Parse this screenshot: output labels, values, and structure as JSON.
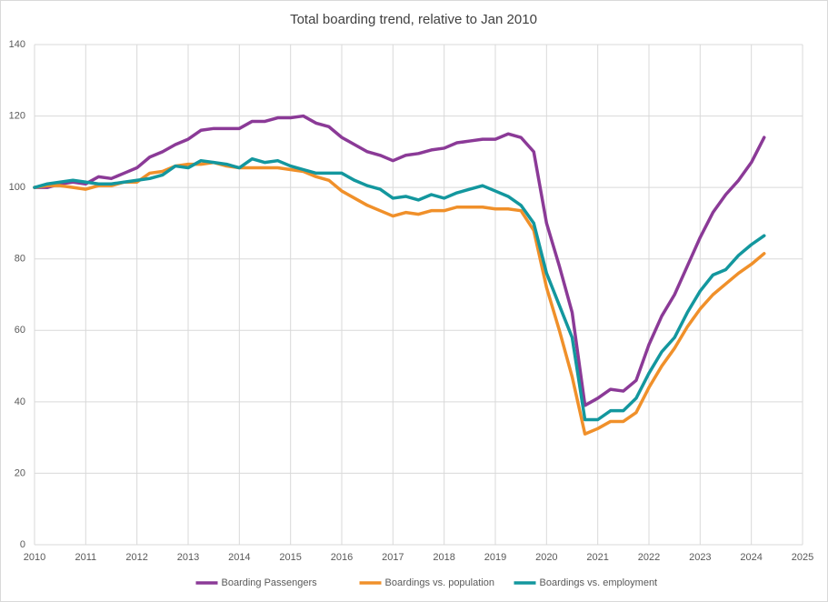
{
  "chart_data": {
    "type": "line",
    "title": "Total boarding trend, relative to Jan 2010",
    "x": [
      2010,
      2010.25,
      2010.5,
      2010.75,
      2011,
      2011.25,
      2011.5,
      2011.75,
      2012,
      2012.25,
      2012.5,
      2012.75,
      2013,
      2013.25,
      2013.5,
      2013.75,
      2014,
      2014.25,
      2014.5,
      2014.75,
      2015,
      2015.25,
      2015.5,
      2015.75,
      2016,
      2016.25,
      2016.5,
      2016.75,
      2017,
      2017.25,
      2017.5,
      2017.75,
      2018,
      2018.25,
      2018.5,
      2018.75,
      2019,
      2019.25,
      2019.5,
      2019.75,
      2020,
      2020.25,
      2020.5,
      2020.75,
      2021,
      2021.25,
      2021.5,
      2021.75,
      2022,
      2022.25,
      2022.5,
      2022.75,
      2023,
      2023.25,
      2023.5,
      2023.75,
      2024,
      2024.25
    ],
    "series": [
      {
        "name": "Boarding Passengers",
        "color": "#8b3a97",
        "values": [
          100,
          100,
          101,
          101.5,
          101,
          103,
          102.5,
          104,
          105.5,
          108.5,
          110,
          112,
          113.5,
          116,
          116.5,
          116.5,
          116.5,
          118.5,
          118.5,
          119.5,
          119.5,
          120,
          118,
          117,
          114,
          112,
          110,
          109,
          107.5,
          109,
          109.5,
          110.5,
          111,
          112.5,
          113,
          113.5,
          113.5,
          115,
          114,
          110,
          90,
          78,
          65,
          39,
          41,
          43.5,
          43,
          46,
          56,
          64,
          70,
          78,
          86,
          93,
          98,
          102,
          107,
          114
        ]
      },
      {
        "name": "Boardings vs. population",
        "color": "#f0902a",
        "values": [
          100,
          100.5,
          100.5,
          100,
          99.5,
          100.5,
          100.5,
          101.5,
          101.5,
          104,
          104.5,
          106,
          106.5,
          106.5,
          107,
          106,
          105.5,
          105.5,
          105.5,
          105.5,
          105,
          104.5,
          103,
          102,
          99,
          97,
          95,
          93.5,
          92,
          93,
          92.5,
          93.5,
          93.5,
          94.5,
          94.5,
          94.5,
          94,
          94,
          93.5,
          88,
          72,
          60,
          47,
          31,
          32.5,
          34.5,
          34.5,
          37,
          44,
          50,
          55,
          61,
          66,
          70,
          73,
          76,
          78.5,
          81.5
        ]
      },
      {
        "name": "Boardings vs. employment",
        "color": "#13979e",
        "values": [
          100,
          101,
          101.5,
          102,
          101.5,
          101,
          101,
          101.5,
          102,
          102.5,
          103.5,
          106,
          105.5,
          107.5,
          107,
          106.5,
          105.5,
          108,
          107,
          107.5,
          106,
          105,
          104,
          104,
          104,
          102,
          100.5,
          99.5,
          97,
          97.5,
          96.5,
          98,
          97,
          98.5,
          99.5,
          100.5,
          99,
          97.5,
          95,
          90,
          76,
          67,
          58,
          35,
          35,
          37.5,
          37.5,
          41,
          48,
          54,
          58,
          65,
          71,
          75.5,
          77,
          81,
          84,
          86.5
        ]
      }
    ],
    "xlim": [
      2010,
      2025
    ],
    "xticks": [
      2010,
      2011,
      2012,
      2013,
      2014,
      2015,
      2016,
      2017,
      2018,
      2019,
      2020,
      2021,
      2022,
      2023,
      2024,
      2025
    ],
    "ylim": [
      0,
      140
    ],
    "yticks": [
      0,
      20,
      40,
      60,
      80,
      100,
      120,
      140
    ],
    "grid": true,
    "legend": "bottom"
  }
}
